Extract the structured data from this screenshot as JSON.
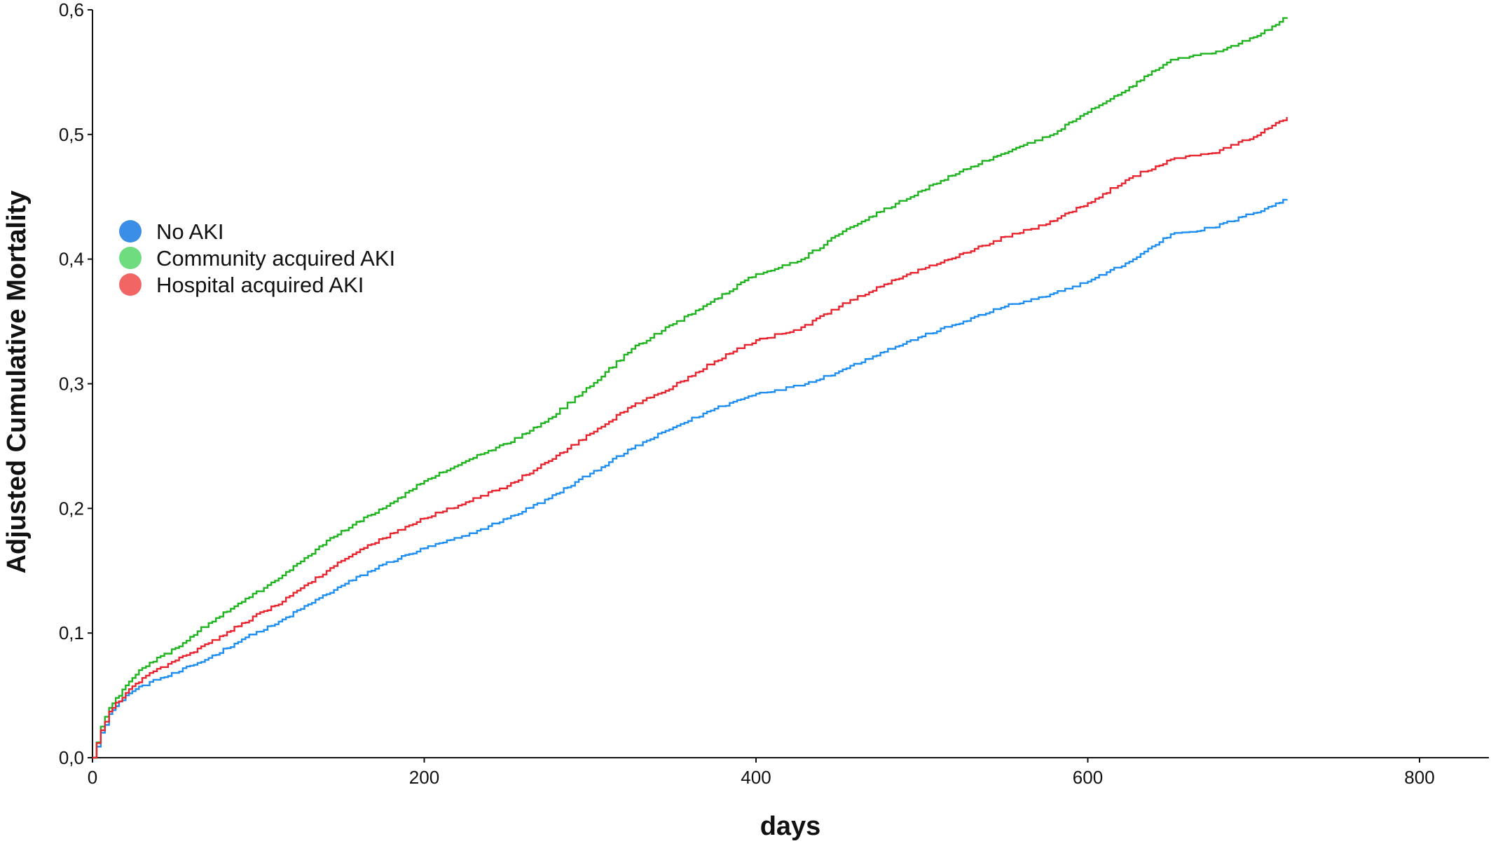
{
  "chart_data": {
    "type": "line",
    "title": "",
    "xlabel": "days",
    "ylabel": "Adjusted Cumulative Mortality",
    "xlim": [
      0,
      850
    ],
    "ylim": [
      0,
      0.6
    ],
    "xticks": [
      {
        "value": 0,
        "label": "0"
      },
      {
        "value": 200,
        "label": "200"
      },
      {
        "value": 400,
        "label": "400"
      },
      {
        "value": 600,
        "label": "600"
      },
      {
        "value": 800,
        "label": "800"
      }
    ],
    "yticks": [
      {
        "value": 0.0,
        "label": "0,0"
      },
      {
        "value": 0.1,
        "label": "0,1"
      },
      {
        "value": 0.2,
        "label": "0,2"
      },
      {
        "value": 0.3,
        "label": "0,3"
      },
      {
        "value": 0.4,
        "label": "0,4"
      },
      {
        "value": 0.5,
        "label": "0,5"
      },
      {
        "value": 0.6,
        "label": "0,6"
      }
    ],
    "grid": false,
    "step": true,
    "legend_position": "left",
    "series": [
      {
        "name": "No AKI",
        "color": "#1f8ef1",
        "marker_color": "#3a8ee6",
        "x": [
          0,
          5,
          10,
          20,
          30,
          50,
          70,
          90,
          110,
          130,
          150,
          175,
          200,
          225,
          250,
          275,
          300,
          325,
          350,
          375,
          400,
          425,
          450,
          475,
          500,
          525,
          550,
          575,
          600,
          625,
          650,
          675,
          700,
          720
        ],
        "y": [
          0,
          0.02,
          0.035,
          0.05,
          0.058,
          0.068,
          0.08,
          0.095,
          0.107,
          0.123,
          0.138,
          0.155,
          0.168,
          0.178,
          0.192,
          0.208,
          0.228,
          0.248,
          0.265,
          0.28,
          0.292,
          0.298,
          0.31,
          0.325,
          0.338,
          0.35,
          0.362,
          0.37,
          0.382,
          0.398,
          0.42,
          0.425,
          0.437,
          0.448
        ]
      },
      {
        "name": "Community acquired AKI",
        "color": "#1fb41f",
        "marker_color": "#6fdc80",
        "x": [
          0,
          5,
          10,
          20,
          30,
          50,
          70,
          90,
          110,
          130,
          150,
          175,
          200,
          225,
          250,
          275,
          300,
          325,
          350,
          375,
          400,
          425,
          450,
          475,
          500,
          525,
          550,
          575,
          600,
          625,
          650,
          675,
          700,
          720
        ],
        "y": [
          0,
          0.025,
          0.04,
          0.058,
          0.072,
          0.088,
          0.108,
          0.125,
          0.142,
          0.162,
          0.182,
          0.2,
          0.222,
          0.238,
          0.252,
          0.272,
          0.298,
          0.328,
          0.348,
          0.368,
          0.388,
          0.398,
          0.42,
          0.438,
          0.455,
          0.472,
          0.485,
          0.498,
          0.518,
          0.538,
          0.56,
          0.565,
          0.578,
          0.594
        ]
      },
      {
        "name": "Hospital acquired AKI",
        "color": "#e8242e",
        "marker_color": "#f26565",
        "x": [
          0,
          5,
          10,
          20,
          30,
          50,
          70,
          90,
          110,
          130,
          150,
          175,
          200,
          225,
          250,
          275,
          300,
          325,
          350,
          375,
          400,
          425,
          450,
          475,
          500,
          525,
          550,
          575,
          600,
          625,
          650,
          675,
          700,
          720
        ],
        "y": [
          0,
          0.022,
          0.037,
          0.052,
          0.064,
          0.078,
          0.092,
          0.108,
          0.122,
          0.14,
          0.158,
          0.176,
          0.192,
          0.205,
          0.218,
          0.238,
          0.26,
          0.282,
          0.298,
          0.318,
          0.335,
          0.343,
          0.362,
          0.378,
          0.392,
          0.405,
          0.418,
          0.428,
          0.445,
          0.465,
          0.48,
          0.485,
          0.498,
          0.514
        ]
      }
    ]
  }
}
